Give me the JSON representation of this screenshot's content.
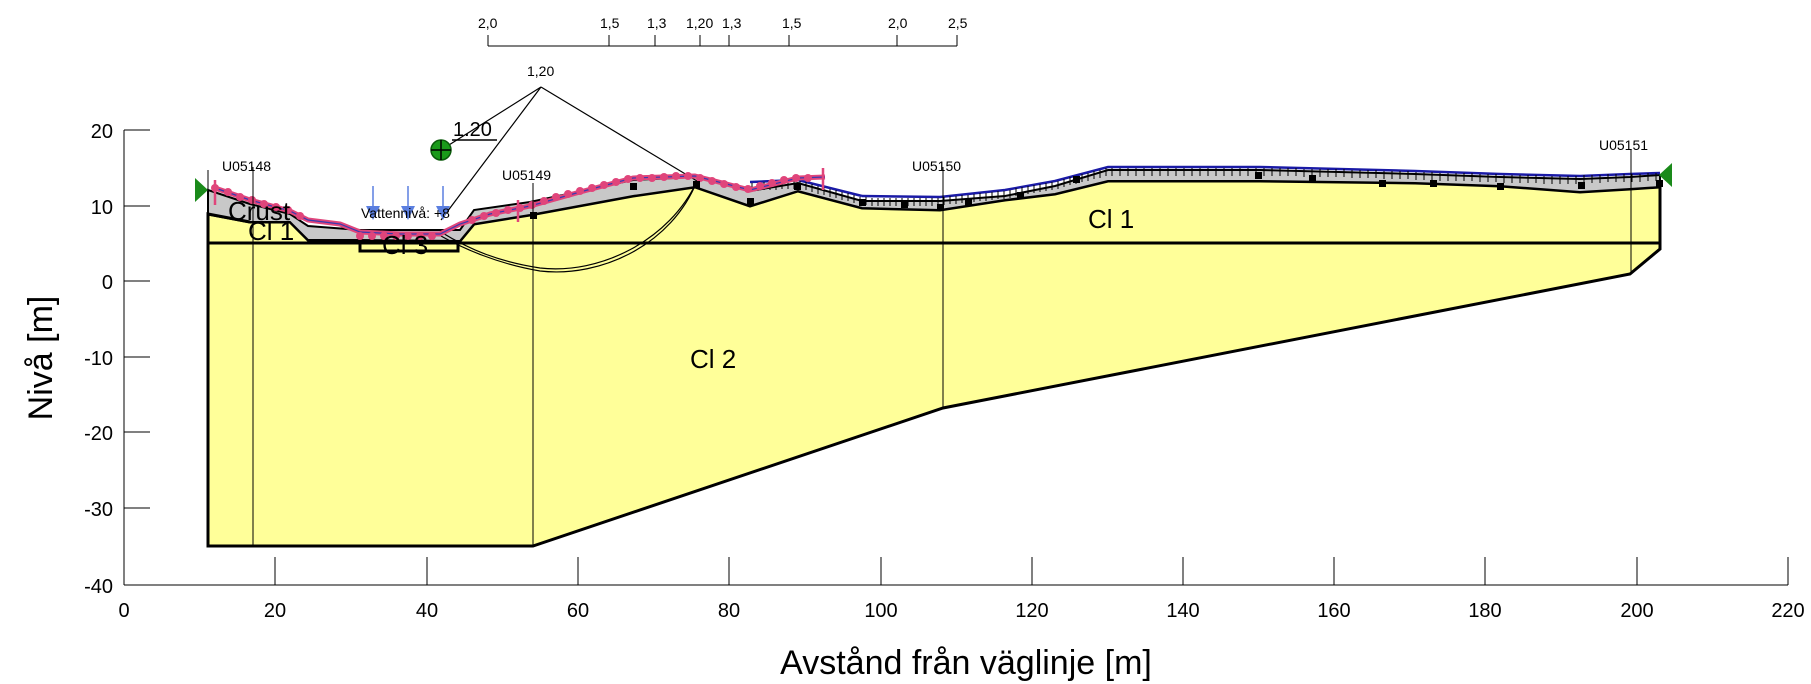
{
  "x_axis": {
    "label": "Avstånd från väglinje [m]",
    "ticks": [
      "0",
      "20",
      "40",
      "60",
      "80",
      "100",
      "120",
      "140",
      "160",
      "180",
      "200",
      "220"
    ]
  },
  "y_axis": {
    "label": "Nivå [m]",
    "ticks": [
      "20",
      "10",
      "0",
      "-10",
      "-20",
      "-30",
      "-40"
    ]
  },
  "top_scale": {
    "labels": [
      "2,0",
      "1,5",
      "1,3",
      "1,20",
      "1,3",
      "1,5",
      "2,0",
      "2,5"
    ]
  },
  "slip_circle": {
    "factor_label": "1,20",
    "min_factor": "1.20"
  },
  "boreholes": [
    "U05148",
    "U05149",
    "U05150",
    "U05151"
  ],
  "soil_layers": [
    "Cl 1",
    "Cl 2",
    "Cl 3",
    "Cl 1",
    "Crust"
  ],
  "water_level_label": "Vattennivå: +8",
  "colors": {
    "soil_fill": "#ffff99",
    "crust_fill": "#c8c8c8",
    "surface_line": "#1a1aa6",
    "load_line": "#e0457b",
    "water_arrow": "#5b7fe0",
    "support_green": "#1a8a1a",
    "center_marker": "#1a9a1a"
  },
  "icons": {
    "support_left": "green-triangle-icon",
    "support_right": "green-triangle-icon",
    "circle_center": "crosshair-circle-icon",
    "water_table": "water-arrow-icon"
  }
}
